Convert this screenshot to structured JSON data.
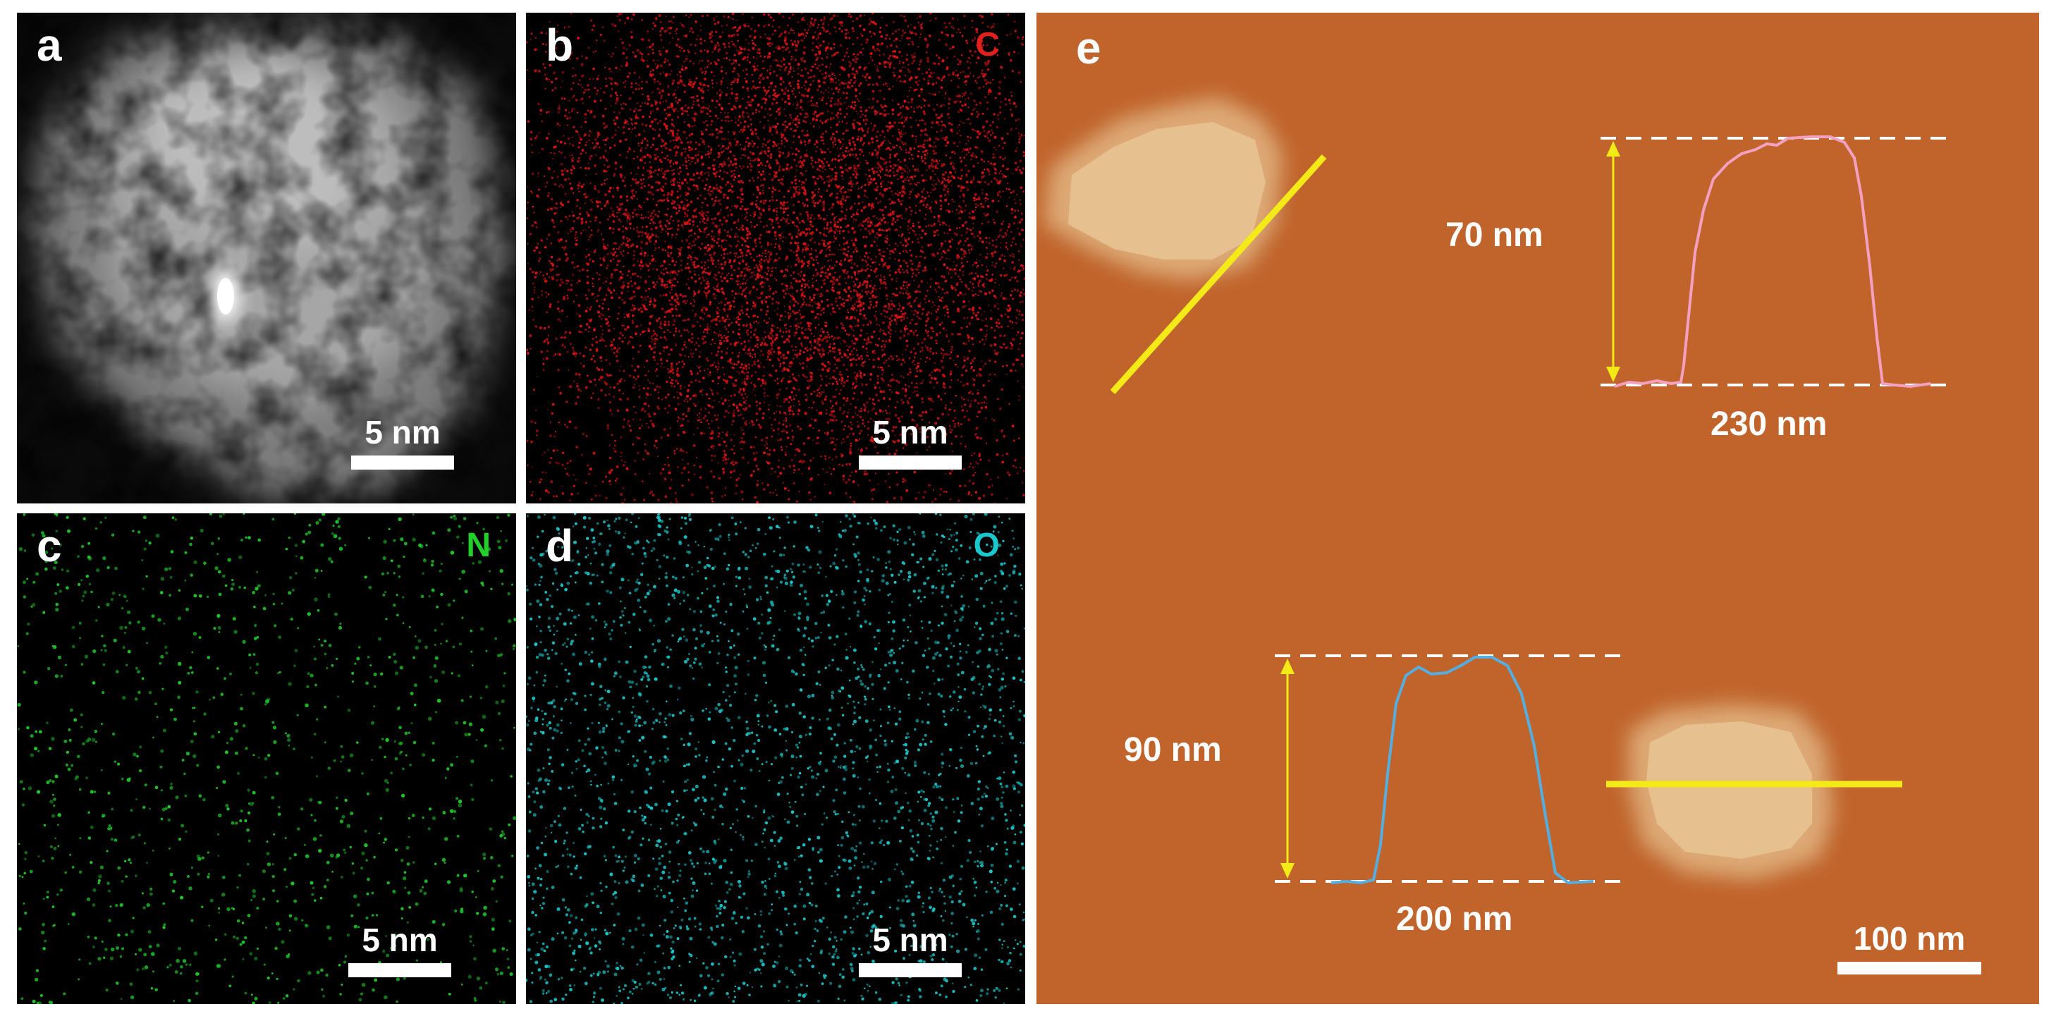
{
  "panels": {
    "a": {
      "letter": "a",
      "scale_label": "5 nm"
    },
    "b": {
      "letter": "b",
      "element": "C",
      "element_color": "#e0201a",
      "dot_color": "#d81414",
      "scale_label": "5 nm"
    },
    "c": {
      "letter": "c",
      "element": "N",
      "element_color": "#22d02a",
      "dot_color": "#1fc82a",
      "scale_label": "5 nm"
    },
    "d": {
      "letter": "d",
      "element": "O",
      "element_color": "#18c8cc",
      "dot_color": "#1cc4c8",
      "scale_label": "5 nm"
    },
    "e": {
      "letter": "e",
      "background_color": "#c0642c",
      "particle_color": "#e6c08e",
      "line_color": "#f4ea18",
      "upper_profile": {
        "height_label": "70 nm",
        "width_label": "230 nm",
        "color": "#f4a0c0"
      },
      "lower_profile": {
        "height_label": "90 nm",
        "width_label": "200 nm",
        "color": "#55aee0"
      },
      "scale_label": "100 nm"
    }
  }
}
